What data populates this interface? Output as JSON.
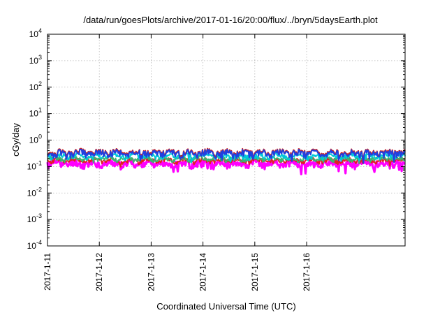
{
  "chart_data": {
    "type": "line",
    "title": "/data/run/goesPlots/archive/2017-01-16/20:00/flux/../bryn/5daysEarth.plot",
    "xlabel": "Coordinated Universal Time (UTC)",
    "ylabel": "cGy/day",
    "yscale": "log",
    "ylim": [
      0.0001,
      10000
    ],
    "xlim": [
      0,
      6.9
    ],
    "grid": true,
    "legend": "none",
    "y_ticks": [
      {
        "value": 0.0001,
        "base": "10",
        "exp": "-4"
      },
      {
        "value": 0.001,
        "base": "10",
        "exp": "-3"
      },
      {
        "value": 0.01,
        "base": "10",
        "exp": "-2"
      },
      {
        "value": 0.1,
        "base": "10",
        "exp": "-1"
      },
      {
        "value": 1,
        "base": "10",
        "exp": "0"
      },
      {
        "value": 10,
        "base": "10",
        "exp": "1"
      },
      {
        "value": 100,
        "base": "10",
        "exp": "2"
      },
      {
        "value": 1000,
        "base": "10",
        "exp": "3"
      },
      {
        "value": 10000,
        "base": "10",
        "exp": "4"
      }
    ],
    "x_ticks": [
      {
        "value": 0,
        "label": "2017-1-11"
      },
      {
        "value": 1,
        "label": "2017-1-12"
      },
      {
        "value": 2,
        "label": "2017-1-13"
      },
      {
        "value": 3,
        "label": "2017-1-14"
      },
      {
        "value": 4,
        "label": "2017-1-15"
      },
      {
        "value": 5,
        "label": "2017-1-16"
      }
    ],
    "series": [
      {
        "color": "#ff00ff",
        "base": 0.13,
        "amp": 0.3,
        "dip": 0.55,
        "seed": 11
      },
      {
        "color": "#e02020",
        "base": 0.17,
        "amp": 0.18,
        "dip": 0.3,
        "seed": 23
      },
      {
        "color": "#3cb371",
        "base": 0.2,
        "amp": 0.18,
        "dip": 0.3,
        "seed": 37
      },
      {
        "color": "#00c8d8",
        "base": 0.25,
        "amp": 0.22,
        "dip": 0.4,
        "seed": 41
      },
      {
        "color": "#cc2222",
        "base": 0.35,
        "amp": 0.25,
        "dip": 0.45,
        "seed": 53
      },
      {
        "color": "#2040e0",
        "base": 0.32,
        "amp": 0.28,
        "dip": 0.55,
        "seed": 53
      }
    ]
  }
}
